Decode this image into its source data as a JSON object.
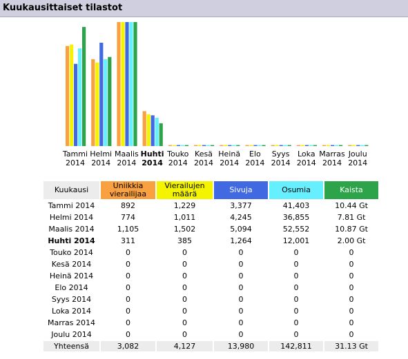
{
  "header": {
    "title": "Kuukausittaiset tilastot"
  },
  "chart_data": {
    "type": "bar",
    "categories": [
      "Tammi 2014",
      "Helmi 2014",
      "Maalis 2014",
      "Huhti 2014",
      "Touko 2014",
      "Kesä 2014",
      "Heinä 2014",
      "Elo 2014",
      "Syys 2014",
      "Loka 2014",
      "Marras 2014",
      "Joulu 2014"
    ],
    "highlight_category": "Huhti 2014",
    "series": [
      {
        "name": "Uniikkia vierailijaa",
        "color": "#f9a040",
        "values": [
          892,
          774,
          1105,
          311,
          0,
          0,
          0,
          0,
          0,
          0,
          0,
          0
        ]
      },
      {
        "name": "Vierailujen määrä",
        "color": "#f4f400",
        "values": [
          1229,
          1011,
          1502,
          385,
          0,
          0,
          0,
          0,
          0,
          0,
          0,
          0
        ]
      },
      {
        "name": "Sivuja",
        "color": "#4169e1",
        "values": [
          3377,
          4245,
          5094,
          1264,
          0,
          0,
          0,
          0,
          0,
          0,
          0,
          0
        ]
      },
      {
        "name": "Osumia",
        "color": "#66f0ff",
        "values": [
          41403,
          36855,
          52552,
          12001,
          0,
          0,
          0,
          0,
          0,
          0,
          0,
          0
        ]
      },
      {
        "name": "Kaista",
        "color": "#2ea44a",
        "values": [
          10.44,
          7.81,
          10.87,
          2.0,
          0,
          0,
          0,
          0,
          0,
          0,
          0,
          0
        ]
      }
    ]
  },
  "table": {
    "headers": [
      {
        "key": "month",
        "label": "Kuukausi"
      },
      {
        "key": "unique",
        "label": "Uniikkia vierailijaa"
      },
      {
        "key": "visits",
        "label": "Vierailujen määrä"
      },
      {
        "key": "pages",
        "label": "Sivuja"
      },
      {
        "key": "hits",
        "label": "Osumia"
      },
      {
        "key": "bw",
        "label": "Kaista"
      }
    ],
    "rows": [
      {
        "month": "Tammi 2014",
        "unique": "892",
        "visits": "1,229",
        "pages": "3,377",
        "hits": "41,403",
        "bw": "10.44 Gt"
      },
      {
        "month": "Helmi 2014",
        "unique": "774",
        "visits": "1,011",
        "pages": "4,245",
        "hits": "36,855",
        "bw": "7.81 Gt"
      },
      {
        "month": "Maalis 2014",
        "unique": "1,105",
        "visits": "1,502",
        "pages": "5,094",
        "hits": "52,552",
        "bw": "10.87 Gt"
      },
      {
        "month": "Huhti 2014",
        "unique": "311",
        "visits": "385",
        "pages": "1,264",
        "hits": "12,001",
        "bw": "2.00 Gt",
        "bold": true
      },
      {
        "month": "Touko 2014",
        "unique": "0",
        "visits": "0",
        "pages": "0",
        "hits": "0",
        "bw": "0"
      },
      {
        "month": "Kesä 2014",
        "unique": "0",
        "visits": "0",
        "pages": "0",
        "hits": "0",
        "bw": "0"
      },
      {
        "month": "Heinä 2014",
        "unique": "0",
        "visits": "0",
        "pages": "0",
        "hits": "0",
        "bw": "0"
      },
      {
        "month": "Elo 2014",
        "unique": "0",
        "visits": "0",
        "pages": "0",
        "hits": "0",
        "bw": "0"
      },
      {
        "month": "Syys 2014",
        "unique": "0",
        "visits": "0",
        "pages": "0",
        "hits": "0",
        "bw": "0"
      },
      {
        "month": "Loka 2014",
        "unique": "0",
        "visits": "0",
        "pages": "0",
        "hits": "0",
        "bw": "0"
      },
      {
        "month": "Marras 2014",
        "unique": "0",
        "visits": "0",
        "pages": "0",
        "hits": "0",
        "bw": "0"
      },
      {
        "month": "Joulu 2014",
        "unique": "0",
        "visits": "0",
        "pages": "0",
        "hits": "0",
        "bw": "0"
      }
    ],
    "total": {
      "month": "Yhteensä",
      "unique": "3,082",
      "visits": "4,127",
      "pages": "13,980",
      "hits": "142,811",
      "bw": "31.13 Gt"
    }
  }
}
